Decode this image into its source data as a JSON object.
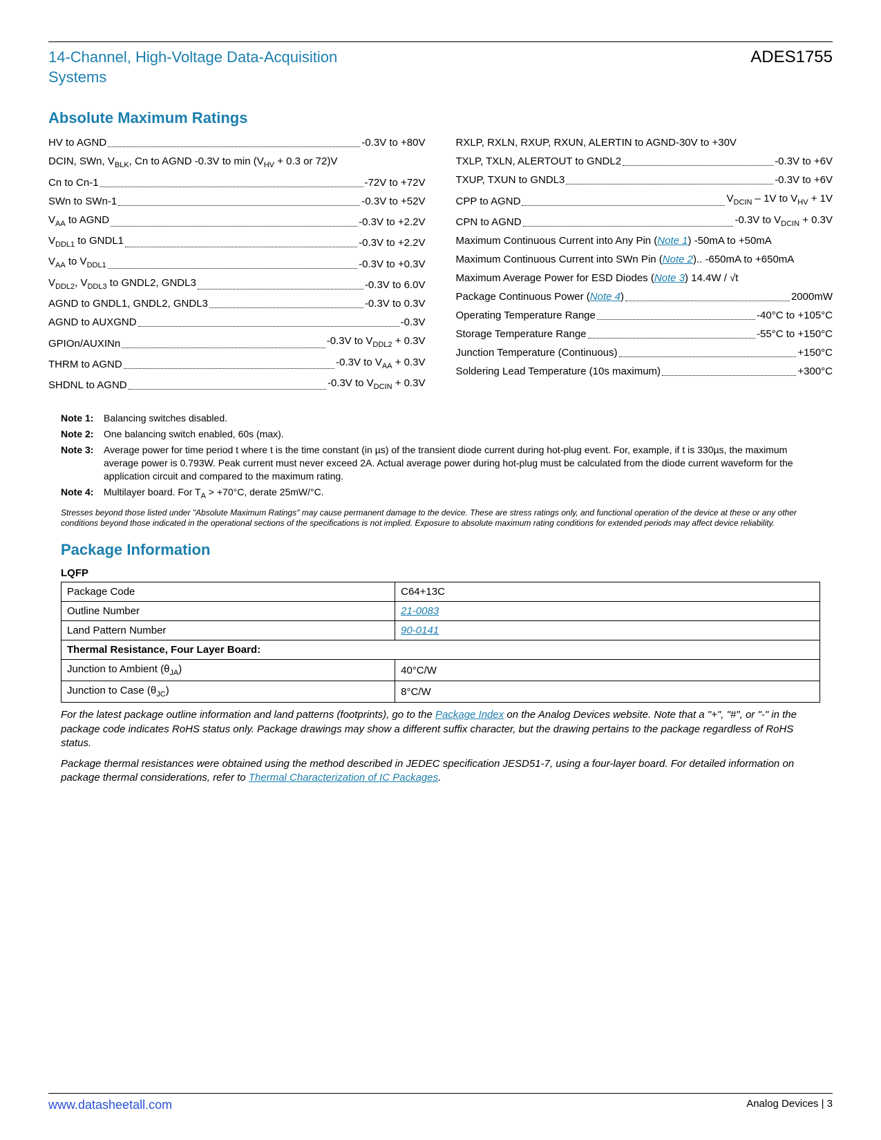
{
  "header": {
    "title": "14-Channel, High-Voltage Data-Acquisition Systems",
    "part_number": "ADES1755"
  },
  "amr": {
    "title": "Absolute Maximum Ratings",
    "left": [
      {
        "label": "HV to AGND",
        "value": "-0.3V to +80V",
        "dots": true
      },
      {
        "label": "DCIN, SWn, V<sub>BLK</sub>, Cn to AGND -0.3V  to  min  (V<sub>HV</sub>  +  0.3  or 72)V",
        "value": "",
        "dots": false,
        "wrap": true
      },
      {
        "label": "Cn to Cn-1",
        "value": "-72V to +72V",
        "dots": true
      },
      {
        "label": "SWn to SWn-1",
        "value": "-0.3V to +52V",
        "dots": true
      },
      {
        "label": "V<sub>AA</sub> to AGND",
        "value": "-0.3V to +2.2V",
        "dots": true
      },
      {
        "label": "V<sub>DDL1</sub> to GNDL1",
        "value": "-0.3V to +2.2V",
        "dots": true
      },
      {
        "label": "V<sub>AA</sub> to V<sub>DDL1</sub>",
        "value": "-0.3V to +0.3V",
        "dots": true
      },
      {
        "label": "V<sub>DDL2</sub>, V<sub>DDL3</sub> to GNDL2, GNDL3",
        "value": "-0.3V to 6.0V",
        "dots": true
      },
      {
        "label": "AGND to GNDL1, GNDL2, GNDL3",
        "value": "-0.3V to 0.3V",
        "dots": true
      },
      {
        "label": "AGND to AUXGND",
        "value": "-0.3V",
        "dots": true
      },
      {
        "label": "GPIOn/AUXINn",
        "value": "-0.3V to V<sub>DDL2</sub> + 0.3V",
        "dots": true
      },
      {
        "label": "THRM to AGND",
        "value": "-0.3V to V<sub>AA</sub> + 0.3V",
        "dots": true
      },
      {
        "label": "SHDNL to AGND",
        "value": "-0.3V to V<sub>DCIN</sub> + 0.3V",
        "dots": true
      }
    ],
    "right": [
      {
        "label": "RXLP, RXLN, RXUP, RXUN, ALERTIN to AGND-30V to +30V",
        "value": "",
        "dots": false,
        "wrap": true
      },
      {
        "label": "TXLP, TXLN, ALERTOUT to GNDL2",
        "value": "-0.3V to +6V",
        "dots": true
      },
      {
        "label": "TXUP, TXUN to GNDL3",
        "value": "-0.3V to +6V",
        "dots": true
      },
      {
        "label": "CPP to AGND",
        "value": "V<sub>DCIN</sub> – 1V to V<sub>HV</sub> + 1V",
        "dots": true
      },
      {
        "label": "CPN to AGND",
        "value": "-0.3V to V<sub>DCIN</sub> + 0.3V",
        "dots": true
      },
      {
        "label": "Maximum Continuous Current into Any Pin (<a class='link' data-name='note-link' data-interactable='true'>Note 1</a>) -50mA   to +50mA",
        "value": "",
        "dots": false,
        "wrap": true
      },
      {
        "label": "Maximum Continuous Current into SWn Pin (<a class='link' data-name='note-link' data-interactable='true'>Note 2</a>).. -650mA to +650mA",
        "value": "",
        "dots": false,
        "wrap": true
      },
      {
        "label": "Maximum Average Power for ESD Diodes (<a class='link' data-name='note-link' data-interactable='true'>Note 3</a>)  14.4W / √t",
        "value": "",
        "dots": false,
        "wrap": true
      },
      {
        "label": "Package Continuous Power (<a class='link' data-name='note-link' data-interactable='true'>Note 4</a>)",
        "value": "2000mW",
        "dots": true
      },
      {
        "label": "Operating Temperature Range",
        "value": "-40°C to +105°C",
        "dots": true
      },
      {
        "label": "Storage Temperature Range",
        "value": "-55°C to +150°C",
        "dots": true
      },
      {
        "label": "Junction Temperature (Continuous)",
        "value": "+150°C",
        "dots": true
      },
      {
        "label": "Soldering Lead Temperature (10s maximum)",
        "value": "+300°C",
        "dots": true
      }
    ]
  },
  "notes": [
    {
      "label": "Note 1:",
      "text": "Balancing switches disabled."
    },
    {
      "label": "Note 2:",
      "text": "One balancing switch enabled, 60s (max)."
    },
    {
      "label": "Note 3:",
      "text": "Average power for time period t where t is the time constant (in µs) of the transient diode current during hot-plug event. For, example, if t is 330µs, the maximum average power is 0.793W. Peak current must never exceed 2A. Actual average power during hot-plug must be calculated from the diode current waveform for the application circuit and compared to the maximum rating."
    },
    {
      "label": "Note 4:",
      "text": "Multilayer board. For T<sub>A</sub> > +70°C, derate 25mW/°C."
    }
  ],
  "disclaimer": "Stresses beyond those listed under \"Absolute Maximum Ratings\" may cause permanent damage to the device. These are stress ratings only, and functional operation of the device at these or any other conditions beyond those indicated in the operational sections of the specifications is not implied. Exposure to absolute maximum rating conditions for extended periods may affect device reliability.",
  "pkg": {
    "title": "Package Information",
    "subtitle": "LQFP",
    "rows": [
      {
        "k": "Package Code",
        "v": "C64+13C",
        "link": false
      },
      {
        "k": "Outline Number",
        "v": "21-0083",
        "link": true
      },
      {
        "k": "Land Pattern Number",
        "v": "90-0141",
        "link": true
      }
    ],
    "thermal_header": "Thermal Resistance, Four Layer Board:",
    "thermal_rows": [
      {
        "k": "Junction to Ambient (θ<sub>JA</sub>)",
        "v": "40°C/W"
      },
      {
        "k": "Junction to Case (θ<sub>JC</sub>)",
        "v": "8°C/W"
      }
    ]
  },
  "footnotes": {
    "p1_a": "For the latest package outline information and land patterns (footprints), go to the ",
    "p1_link": "Package Index",
    "p1_b": " on the Analog Devices website. Note that a \"+\", \"#\", or \"-\" in the package code indicates RoHS status only. Package drawings may show a different suffix character, but the drawing pertains to the package regardless of RoHS status.",
    "p2_a": "Package thermal resistances were obtained using the method described in JEDEC specification JESD51-7, using a four-layer board. For detailed information on package thermal considerations, refer to ",
    "p2_link": "Thermal Characterization of IC Packages",
    "p2_b": "."
  },
  "footer": {
    "url": "www.datasheetall.com",
    "right": "Analog Devices | 3"
  },
  "styling": {
    "accent_color": "#1b7fae",
    "link_color": "#2a52d6",
    "body_font_size": 15,
    "title_font_size": 22,
    "background": "#ffffff"
  }
}
